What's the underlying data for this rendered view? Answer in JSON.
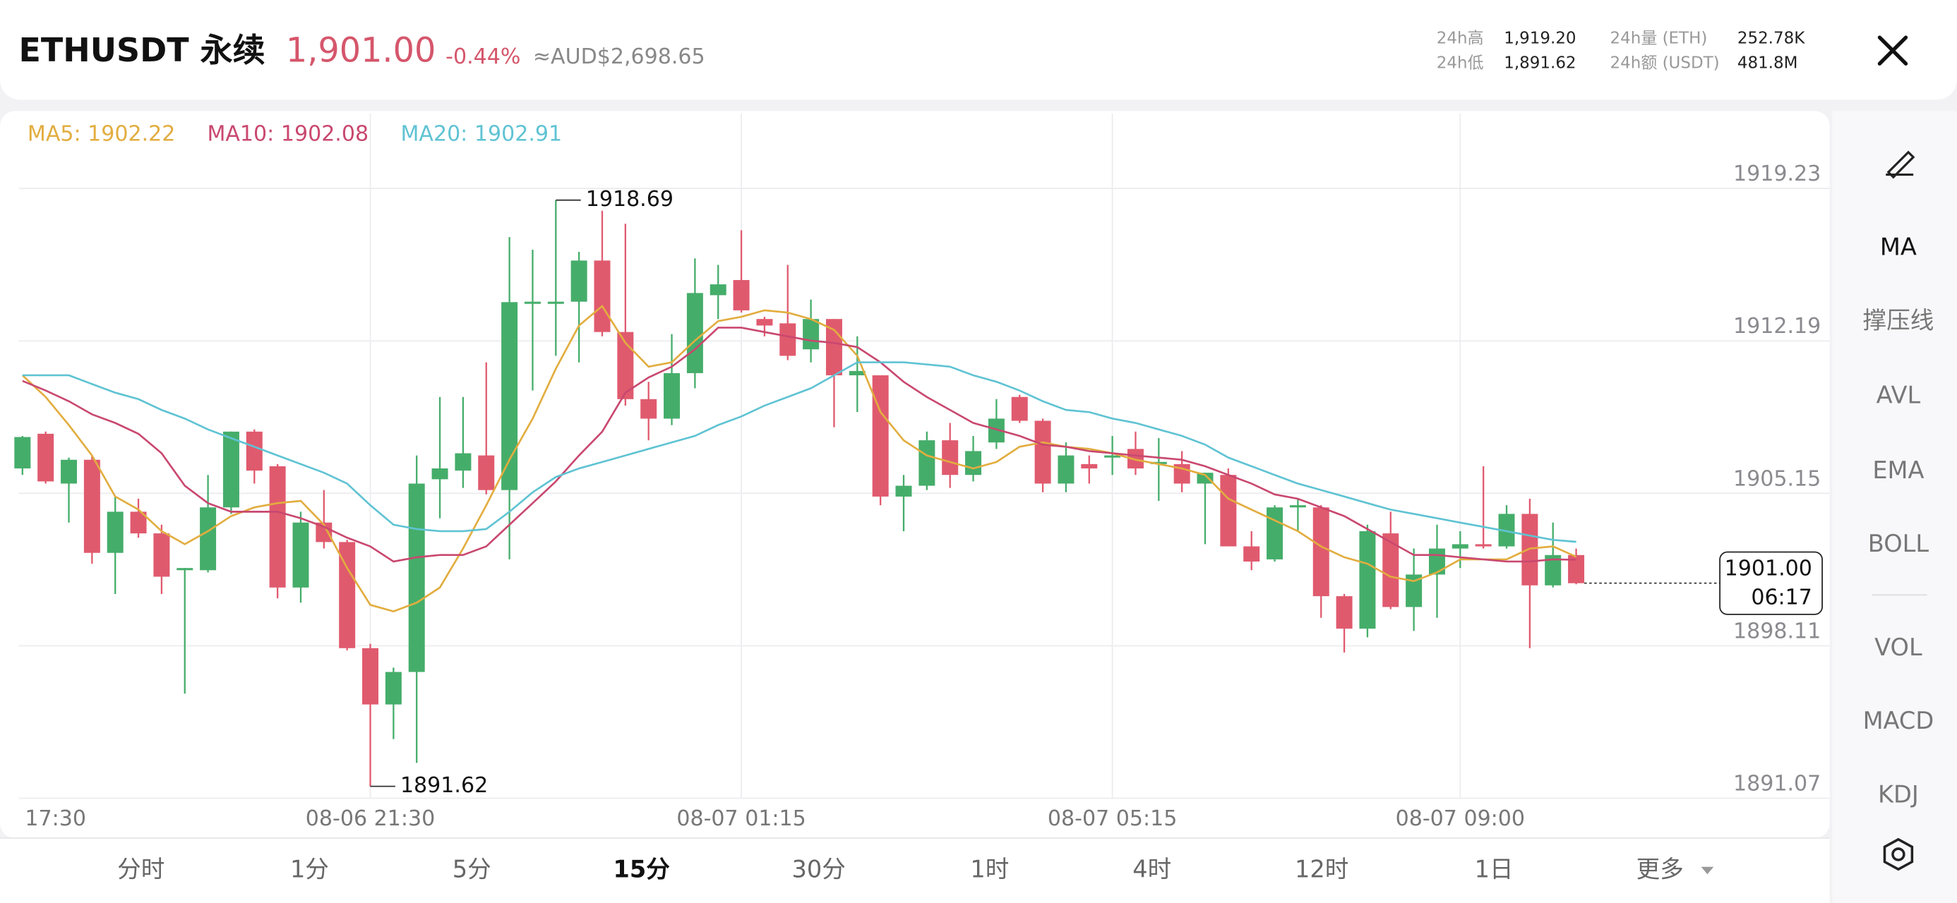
{
  "header": {
    "symbol": "ETHUSDT 永续",
    "price": "1,901.00",
    "change": "-0.44%",
    "converted": "≈AUD$2,698.65",
    "stats": [
      {
        "label": "24h高",
        "value": "1,919.20"
      },
      {
        "label": "24h低",
        "value": "1,891.62"
      },
      {
        "label": "24h量 (ETH)",
        "value": "252.78K"
      },
      {
        "label": "24h额 (USDT)",
        "value": "481.8M"
      }
    ]
  },
  "chart_data": {
    "type": "candlestick",
    "categories": [
      "17:30",
      null,
      null,
      null,
      null,
      null,
      null,
      null,
      null,
      null,
      null,
      null,
      null,
      null,
      null,
      "08-06 21:30",
      null,
      null,
      null,
      null,
      null,
      null,
      null,
      null,
      null,
      null,
      null,
      null,
      null,
      null,
      null,
      "08-07 01:15",
      null,
      null,
      null,
      null,
      null,
      null,
      null,
      null,
      null,
      null,
      null,
      null,
      null,
      null,
      null,
      "08-07 05:15",
      null,
      null,
      null,
      null,
      null,
      null,
      null,
      null,
      null,
      null,
      null,
      null,
      null,
      null,
      "08-07 09:00",
      null,
      null,
      null,
      null,
      null
    ],
    "open": [
      1906.3,
      1907.9,
      1905.6,
      1906.7,
      1902.4,
      1904.3,
      1903.3,
      1901.6,
      1901.6,
      1904.5,
      1908.0,
      1906.4,
      1900.8,
      1903.8,
      1902.9,
      1898.0,
      1895.4,
      1896.9,
      1905.8,
      1906.2,
      1906.9,
      1905.3,
      1913.9,
      1913.9,
      1914.0,
      1915.9,
      1912.6,
      1909.5,
      1908.6,
      1910.7,
      1914.3,
      1915.0,
      1913.2,
      1913.0,
      1911.8,
      1913.2,
      1910.6,
      1910.6,
      1905.0,
      1905.5,
      1907.6,
      1906.0,
      1907.5,
      1909.6,
      1908.5,
      1905.6,
      1906.5,
      1906.8,
      1907.2,
      1906.5,
      1906.5,
      1905.6,
      1906.0,
      1902.7,
      1902.1,
      1904.5,
      1904.5,
      1900.4,
      1898.9,
      1903.3,
      1899.9,
      1901.4,
      1902.6,
      1902.8,
      1902.7,
      1904.2,
      1900.9,
      1902.3
    ],
    "high": [
      1907.8,
      1908.0,
      1906.8,
      1906.9,
      1905.0,
      1904.9,
      1903.7,
      1901.7,
      1906.0,
      1908.0,
      1908.1,
      1906.5,
      1904.3,
      1905.3,
      1903.0,
      1898.2,
      1897.1,
      1906.9,
      1909.6,
      1909.6,
      1911.2,
      1916.98,
      1916.4,
      1918.69,
      1916.3,
      1918.2,
      1917.6,
      1910.3,
      1912.5,
      1916.0,
      1915.7,
      1917.3,
      1913.3,
      1915.7,
      1914.1,
      1913.2,
      1912.4,
      1910.6,
      1906.0,
      1908.0,
      1908.4,
      1907.8,
      1909.5,
      1909.7,
      1908.6,
      1907.5,
      1906.9,
      1907.8,
      1908.0,
      1907.7,
      1907.1,
      1906.1,
      1906.3,
      1903.4,
      1904.6,
      1904.9,
      1904.6,
      1900.5,
      1903.7,
      1904.3,
      1902.6,
      1903.7,
      1903.4,
      1906.4,
      1904.6,
      1904.9,
      1903.8,
      1902.6
    ],
    "low": [
      1906.0,
      1905.6,
      1903.8,
      1901.9,
      1900.5,
      1903.1,
      1900.5,
      1895.9,
      1901.5,
      1904.2,
      1905.6,
      1900.3,
      1900.1,
      1902.6,
      1897.9,
      1891.62,
      1893.8,
      1892.7,
      1904.0,
      1905.4,
      1905.1,
      1902.1,
      1909.9,
      1911.5,
      1911.2,
      1912.4,
      1909.2,
      1907.6,
      1908.3,
      1910.0,
      1913.2,
      1913.5,
      1912.4,
      1911.3,
      1911.2,
      1908.2,
      1908.9,
      1904.6,
      1903.4,
      1905.3,
      1905.4,
      1905.7,
      1907.2,
      1908.4,
      1905.2,
      1905.2,
      1905.6,
      1906.0,
      1906.0,
      1904.8,
      1905.2,
      1902.8,
      1902.7,
      1901.6,
      1902.0,
      1903.4,
      1899.4,
      1897.8,
      1898.5,
      1899.8,
      1898.8,
      1899.4,
      1901.7,
      1902.6,
      1902.6,
      1898.0,
      1900.8,
      1900.95
    ],
    "close": [
      1907.75,
      1905.7,
      1906.7,
      1902.4,
      1904.3,
      1903.3,
      1901.3,
      1901.7,
      1904.5,
      1908.0,
      1906.2,
      1900.8,
      1903.8,
      1902.9,
      1898.0,
      1895.4,
      1896.9,
      1905.6,
      1906.3,
      1907.0,
      1905.3,
      1913.98,
      1914.0,
      1914.0,
      1915.9,
      1912.6,
      1909.5,
      1908.6,
      1910.7,
      1914.4,
      1914.8,
      1913.6,
      1912.9,
      1911.5,
      1913.2,
      1910.6,
      1910.8,
      1905.0,
      1905.5,
      1907.6,
      1906.0,
      1907.1,
      1908.6,
      1908.5,
      1905.6,
      1906.9,
      1906.3,
      1906.9,
      1906.3,
      1906.6,
      1905.6,
      1906.1,
      1902.7,
      1902.0,
      1904.5,
      1904.6,
      1900.4,
      1898.9,
      1903.4,
      1899.9,
      1901.4,
      1902.6,
      1902.8,
      1902.7,
      1904.2,
      1900.9,
      1902.3,
      1901.0
    ],
    "up_color": "#45ad6a",
    "down_color": "#e05a6e",
    "series": [
      {
        "name": "MA5: 1902.22",
        "color": "#e2ad3f",
        "values": [
          1910.6,
          1909.6,
          1908.3,
          1906.9,
          1905.0,
          1904.4,
          1903.4,
          1902.8,
          1903.4,
          1904.1,
          1904.5,
          1904.7,
          1904.8,
          1903.7,
          1901.7,
          1900.0,
          1899.7,
          1900.1,
          1900.8,
          1902.6,
          1904.6,
          1906.7,
          1908.6,
          1910.9,
          1912.9,
          1913.8,
          1912.1,
          1911.0,
          1911.2,
          1912.2,
          1913.1,
          1913.3,
          1913.6,
          1913.5,
          1913.2,
          1912.7,
          1911.5,
          1908.9,
          1907.6,
          1906.9,
          1906.6,
          1906.3,
          1906.6,
          1907.3,
          1907.5,
          1907.3,
          1907.2,
          1907.0,
          1906.7,
          1906.5,
          1906.3,
          1906.0,
          1904.9,
          1904.4,
          1903.9,
          1903.4,
          1902.7,
          1902.2,
          1901.9,
          1901.3,
          1901.1,
          1901.5,
          1902.1,
          1902.1,
          1902.1,
          1902.6,
          1902.7,
          1902.22
        ]
      },
      {
        "name": "MA10: 1902.08",
        "color": "#c9486f",
        "values": [
          1910.34,
          1909.9,
          1909.4,
          1908.8,
          1908.4,
          1907.9,
          1907.0,
          1905.5,
          1904.7,
          1904.3,
          1904.3,
          1904.3,
          1904.0,
          1903.6,
          1903.1,
          1902.7,
          1902.0,
          1902.2,
          1902.3,
          1902.3,
          1902.7,
          1903.7,
          1904.7,
          1905.7,
          1906.9,
          1908.0,
          1909.8,
          1910.5,
          1911.0,
          1911.8,
          1912.8,
          1912.8,
          1912.6,
          1912.4,
          1912.2,
          1912.1,
          1911.9,
          1911.2,
          1910.3,
          1909.6,
          1909.0,
          1908.4,
          1908.1,
          1907.8,
          1907.4,
          1907.3,
          1907.1,
          1907.0,
          1906.9,
          1906.8,
          1906.7,
          1906.4,
          1906.0,
          1905.6,
          1905.1,
          1904.9,
          1904.5,
          1904.1,
          1903.5,
          1902.9,
          1902.3,
          1902.3,
          1902.2,
          1902.1,
          1902.0,
          1902.0,
          1902.1,
          1902.08
        ]
      },
      {
        "name": "MA20: 1902.91",
        "color": "#5fc3d3",
        "values": [
          1910.6,
          1910.6,
          1910.6,
          1910.2,
          1909.8,
          1909.5,
          1909.0,
          1908.6,
          1908.1,
          1907.7,
          1907.3,
          1906.9,
          1906.5,
          1906.1,
          1905.6,
          1904.6,
          1903.7,
          1903.5,
          1903.4,
          1903.4,
          1903.5,
          1904.3,
          1905.2,
          1905.9,
          1906.3,
          1906.6,
          1906.9,
          1907.2,
          1907.5,
          1907.8,
          1908.3,
          1908.7,
          1909.2,
          1909.6,
          1910.0,
          1910.6,
          1911.2,
          1911.2,
          1911.2,
          1911.1,
          1911.0,
          1910.6,
          1910.3,
          1909.9,
          1909.4,
          1909.0,
          1908.9,
          1908.6,
          1908.4,
          1908.1,
          1907.8,
          1907.4,
          1906.8,
          1906.4,
          1906.0,
          1905.6,
          1905.3,
          1905.0,
          1904.7,
          1904.4,
          1904.2,
          1904.0,
          1903.8,
          1903.6,
          1903.4,
          1903.2,
          1903.0,
          1902.91
        ]
      }
    ],
    "ylim": [
      1891.07,
      1922.69
    ],
    "yticks": [
      1891.07,
      1898.11,
      1905.15,
      1912.19,
      1919.23
    ],
    "grid": true,
    "last_price_label": "1901.00",
    "countdown": "06:17"
  },
  "toolbar": [
    "MA",
    "撑压线",
    "AVL",
    "EMA",
    "BOLL",
    "VOL",
    "MACD",
    "KDJ"
  ],
  "timeframes": [
    "分时",
    "1分",
    "5分",
    "15分",
    "30分",
    "1时",
    "4时",
    "12时",
    "1日",
    "更多"
  ],
  "active_timeframe": 3
}
